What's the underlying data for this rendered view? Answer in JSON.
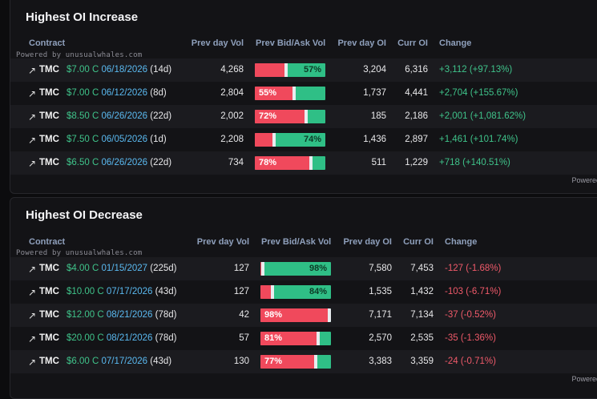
{
  "panels": [
    {
      "title": "Highest OI Increase",
      "headers": {
        "contract": "Contract",
        "prev_vol": "Prev day Vol",
        "bid_ask": "Prev Bid/Ask Vol",
        "prev_oi": "Prev day OI",
        "curr_oi": "Curr OI",
        "change": "Change"
      },
      "powered_small": "Powered by unusualwhales.com",
      "powered_foot": "Powered",
      "change_color": "#3fc38a",
      "rows": [
        {
          "arrow": "↗",
          "ticker": "TMC",
          "strike": "$7.00 C",
          "expiry": "06/18/2026",
          "dte": "(14d)",
          "prev_vol": "4,268",
          "bid_pct": 43,
          "label": "57%",
          "label_side": "ask",
          "prev_oi": "3,204",
          "curr_oi": "6,316",
          "change": "+3,112 (+97.13%)"
        },
        {
          "arrow": "↗",
          "ticker": "TMC",
          "strike": "$7.00 C",
          "expiry": "06/12/2026",
          "dte": "(8d)",
          "prev_vol": "2,804",
          "bid_pct": 55,
          "label": "55%",
          "label_side": "bid",
          "prev_oi": "1,737",
          "curr_oi": "4,441",
          "change": "+2,704 (+155.67%)"
        },
        {
          "arrow": "↗",
          "ticker": "TMC",
          "strike": "$8.50 C",
          "expiry": "06/26/2026",
          "dte": "(22d)",
          "prev_vol": "2,002",
          "bid_pct": 72,
          "label": "72%",
          "label_side": "bid",
          "prev_oi": "185",
          "curr_oi": "2,186",
          "change": "+2,001 (+1,081.62%)"
        },
        {
          "arrow": "↗",
          "ticker": "TMC",
          "strike": "$7.50 C",
          "expiry": "06/05/2026",
          "dte": "(1d)",
          "prev_vol": "2,208",
          "bid_pct": 26,
          "label": "74%",
          "label_side": "ask",
          "prev_oi": "1,436",
          "curr_oi": "2,897",
          "change": "+1,461 (+101.74%)"
        },
        {
          "arrow": "↗",
          "ticker": "TMC",
          "strike": "$6.50 C",
          "expiry": "06/26/2026",
          "dte": "(22d)",
          "prev_vol": "734",
          "bid_pct": 78,
          "label": "78%",
          "label_side": "bid",
          "prev_oi": "511",
          "curr_oi": "1,229",
          "change": "+718 (+140.51%)"
        }
      ]
    },
    {
      "title": "Highest OI Decrease",
      "headers": {
        "contract": "Contract",
        "prev_vol": "Prev day Vol",
        "bid_ask": "Prev Bid/Ask Vol",
        "prev_oi": "Prev day OI",
        "curr_oi": "Curr OI",
        "change": "Change"
      },
      "powered_small": "Powered by unusualwhales.com",
      "powered_foot": "Powered",
      "change_color": "#f05a6a",
      "rows": [
        {
          "arrow": "↗",
          "ticker": "TMC",
          "strike": "$4.00 C",
          "expiry": "01/15/2027",
          "dte": "(225d)",
          "prev_vol": "127",
          "bid_pct": 2,
          "label": "98%",
          "label_side": "ask",
          "prev_oi": "7,580",
          "curr_oi": "7,453",
          "change": "-127 (-1.68%)"
        },
        {
          "arrow": "↗",
          "ticker": "TMC",
          "strike": "$10.00 C",
          "expiry": "07/17/2026",
          "dte": "(43d)",
          "prev_vol": "127",
          "bid_pct": 16,
          "label": "84%",
          "label_side": "ask",
          "prev_oi": "1,535",
          "curr_oi": "1,432",
          "change": "-103 (-6.71%)"
        },
        {
          "arrow": "↗",
          "ticker": "TMC",
          "strike": "$12.00 C",
          "expiry": "08/21/2026",
          "dte": "(78d)",
          "prev_vol": "42",
          "bid_pct": 98,
          "label": "98%",
          "label_side": "bid",
          "prev_oi": "7,171",
          "curr_oi": "7,134",
          "change": "-37 (-0.52%)"
        },
        {
          "arrow": "↗",
          "ticker": "TMC",
          "strike": "$20.00 C",
          "expiry": "08/21/2026",
          "dte": "(78d)",
          "prev_vol": "57",
          "bid_pct": 81,
          "label": "81%",
          "label_side": "bid",
          "prev_oi": "2,570",
          "curr_oi": "2,535",
          "change": "-35 (-1.36%)"
        },
        {
          "arrow": "↗",
          "ticker": "TMC",
          "strike": "$6.00 C",
          "expiry": "07/17/2026",
          "dte": "(43d)",
          "prev_vol": "130",
          "bid_pct": 77,
          "label": "77%",
          "label_side": "bid",
          "prev_oi": "3,383",
          "curr_oi": "3,359",
          "change": "-24 (-0.71%)"
        }
      ]
    }
  ]
}
